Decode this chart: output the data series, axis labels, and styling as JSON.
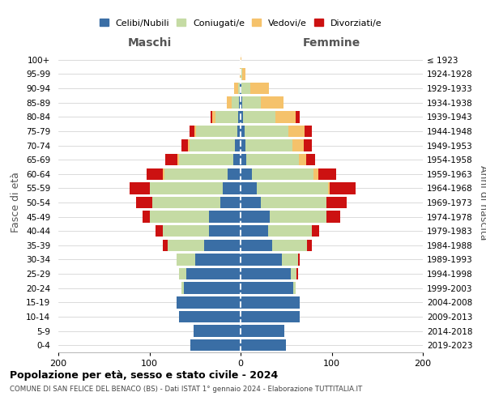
{
  "age_groups": [
    "0-4",
    "5-9",
    "10-14",
    "15-19",
    "20-24",
    "25-29",
    "30-34",
    "35-39",
    "40-44",
    "45-49",
    "50-54",
    "55-59",
    "60-64",
    "65-69",
    "70-74",
    "75-79",
    "80-84",
    "85-89",
    "90-94",
    "95-99",
    "100+"
  ],
  "birth_years": [
    "2019-2023",
    "2014-2018",
    "2009-2013",
    "2004-2008",
    "1999-2003",
    "1994-1998",
    "1989-1993",
    "1984-1988",
    "1979-1983",
    "1974-1978",
    "1969-1973",
    "1964-1968",
    "1959-1963",
    "1954-1958",
    "1949-1953",
    "1944-1948",
    "1939-1943",
    "1934-1938",
    "1929-1933",
    "1924-1928",
    "≤ 1923"
  ],
  "maschi": {
    "celibi": [
      55,
      52,
      68,
      70,
      62,
      60,
      50,
      40,
      35,
      35,
      22,
      20,
      14,
      8,
      6,
      4,
      3,
      2,
      1,
      0,
      0
    ],
    "coniugati": [
      0,
      0,
      0,
      0,
      3,
      8,
      20,
      40,
      50,
      65,
      75,
      80,
      70,
      60,
      50,
      45,
      25,
      8,
      2,
      0,
      0
    ],
    "vedovi": [
      0,
      0,
      0,
      0,
      0,
      0,
      0,
      0,
      0,
      0,
      0,
      0,
      1,
      1,
      2,
      2,
      3,
      5,
      4,
      1,
      0
    ],
    "divorziati": [
      0,
      0,
      0,
      0,
      0,
      0,
      0,
      5,
      8,
      8,
      18,
      22,
      18,
      14,
      7,
      5,
      2,
      0,
      0,
      0,
      0
    ]
  },
  "femmine": {
    "nubili": [
      50,
      48,
      65,
      65,
      58,
      55,
      45,
      35,
      30,
      32,
      22,
      18,
      12,
      6,
      5,
      4,
      3,
      2,
      1,
      0,
      0
    ],
    "coniugate": [
      0,
      0,
      0,
      0,
      2,
      6,
      18,
      38,
      48,
      62,
      72,
      78,
      68,
      58,
      52,
      48,
      35,
      20,
      10,
      2,
      0
    ],
    "vedove": [
      0,
      0,
      0,
      0,
      0,
      0,
      0,
      0,
      0,
      0,
      0,
      2,
      5,
      8,
      12,
      18,
      22,
      25,
      20,
      3,
      1
    ],
    "divorziate": [
      0,
      0,
      0,
      0,
      0,
      2,
      2,
      5,
      8,
      15,
      22,
      28,
      20,
      10,
      9,
      8,
      5,
      0,
      0,
      0,
      0
    ]
  },
  "colors": {
    "celibi": "#3a6ea5",
    "coniugati": "#c5dba4",
    "vedovi": "#f5c26b",
    "divorziati": "#cc1111"
  },
  "title": "Popolazione per età, sesso e stato civile - 2024",
  "subtitle": "COMUNE DI SAN FELICE DEL BENACO (BS) - Dati ISTAT 1° gennaio 2024 - Elaborazione TUTTITALIA.IT",
  "xlabel_maschi": "Maschi",
  "xlabel_femmine": "Femmine",
  "ylabel": "Fasce di età",
  "ylabel_right": "Anni di nascita",
  "xlim": 200,
  "bg_color": "#ffffff"
}
